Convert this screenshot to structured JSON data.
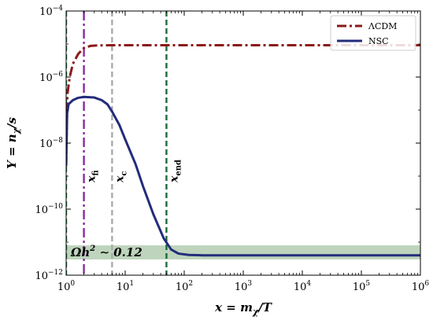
{
  "chart_data": {
    "type": "line",
    "xscale": "log",
    "yscale": "log",
    "xlim": [
      1,
      1000000
    ],
    "ylim": [
      1e-12,
      0.0001
    ],
    "xlabel": {
      "lhs": "x",
      "eq": " = ",
      "m": "m",
      "chi": "χ",
      "rest": "/T"
    },
    "ylabel": {
      "lhs": "Y",
      "eq": " = ",
      "n": "n",
      "chi": "χ",
      "rest": "/s"
    },
    "x_ticks": [
      {
        "value": 1,
        "base": "10",
        "exp": "0"
      },
      {
        "value": 10,
        "base": "10",
        "exp": "1"
      },
      {
        "value": 100,
        "base": "10",
        "exp": "2"
      },
      {
        "value": 1000,
        "base": "10",
        "exp": "3"
      },
      {
        "value": 10000,
        "base": "10",
        "exp": "4"
      },
      {
        "value": 100000,
        "base": "10",
        "exp": "5"
      },
      {
        "value": 1000000,
        "base": "10",
        "exp": "6"
      }
    ],
    "y_ticks": [
      {
        "value": 1e-12,
        "base": "10",
        "exp": "−12"
      },
      {
        "value": 1e-10,
        "base": "10",
        "exp": "−10"
      },
      {
        "value": 1e-08,
        "base": "10",
        "exp": "−8"
      },
      {
        "value": 1e-06,
        "base": "10",
        "exp": "−6"
      },
      {
        "value": 0.0001,
        "base": "10",
        "exp": "−4"
      }
    ],
    "legend": {
      "position": "top-right"
    },
    "series": [
      {
        "name": "ΛCDM",
        "color": "#8b1a1a",
        "style": "dashdot",
        "points": [
          [
            1,
            2e-09
          ],
          [
            1.05,
            3e-07
          ],
          [
            1.15,
            1e-06
          ],
          [
            1.3,
            2.5e-06
          ],
          [
            1.6,
            5e-06
          ],
          [
            2,
            7.6e-06
          ],
          [
            2.6,
            8.8e-06
          ],
          [
            3.5,
            9.1e-06
          ],
          [
            6,
            9.2e-06
          ],
          [
            1000000,
            9.2e-06
          ]
        ]
      },
      {
        "name": "NSC",
        "color": "#232c7a",
        "style": "solid",
        "points": [
          [
            1,
            2e-09
          ],
          [
            1.04,
            8e-08
          ],
          [
            1.1,
            1.5e-07
          ],
          [
            1.3,
            2e-07
          ],
          [
            1.6,
            2.35e-07
          ],
          [
            2,
            2.5e-07
          ],
          [
            3,
            2.4e-07
          ],
          [
            4,
            2e-07
          ],
          [
            5,
            1.5e-07
          ],
          [
            6,
            9e-08
          ],
          [
            8,
            3.5e-08
          ],
          [
            10,
            1.3e-08
          ],
          [
            15,
            2.3e-09
          ],
          [
            20,
            5e-10
          ],
          [
            30,
            7e-11
          ],
          [
            45,
            1.3e-11
          ],
          [
            60,
            6e-12
          ],
          [
            80,
            4.5e-12
          ],
          [
            120,
            4.1e-12
          ],
          [
            200,
            4e-12
          ],
          [
            1000000,
            4e-12
          ]
        ]
      }
    ],
    "vlines": [
      {
        "x": 1,
        "color": "#1a6b3a",
        "style": "dashed",
        "label_base": "",
        "label_sub": ""
      },
      {
        "x": 2,
        "color": "#8b2c9e",
        "style": "dashdot",
        "label_base": "x",
        "label_sub": "fi"
      },
      {
        "x": 6,
        "color": "#aaaaaa",
        "style": "dashed",
        "label_base": "x",
        "label_sub": "c"
      },
      {
        "x": 50,
        "color": "#1a6b3a",
        "style": "dashed",
        "label_base": "x",
        "label_sub": "end"
      }
    ],
    "band": {
      "ymin": 3e-12,
      "ymax": 8e-12,
      "color": "#b3cdb0",
      "label": {
        "pre": "Ωh",
        "sup": "2",
        "post": " ∼ 0.12"
      }
    }
  }
}
